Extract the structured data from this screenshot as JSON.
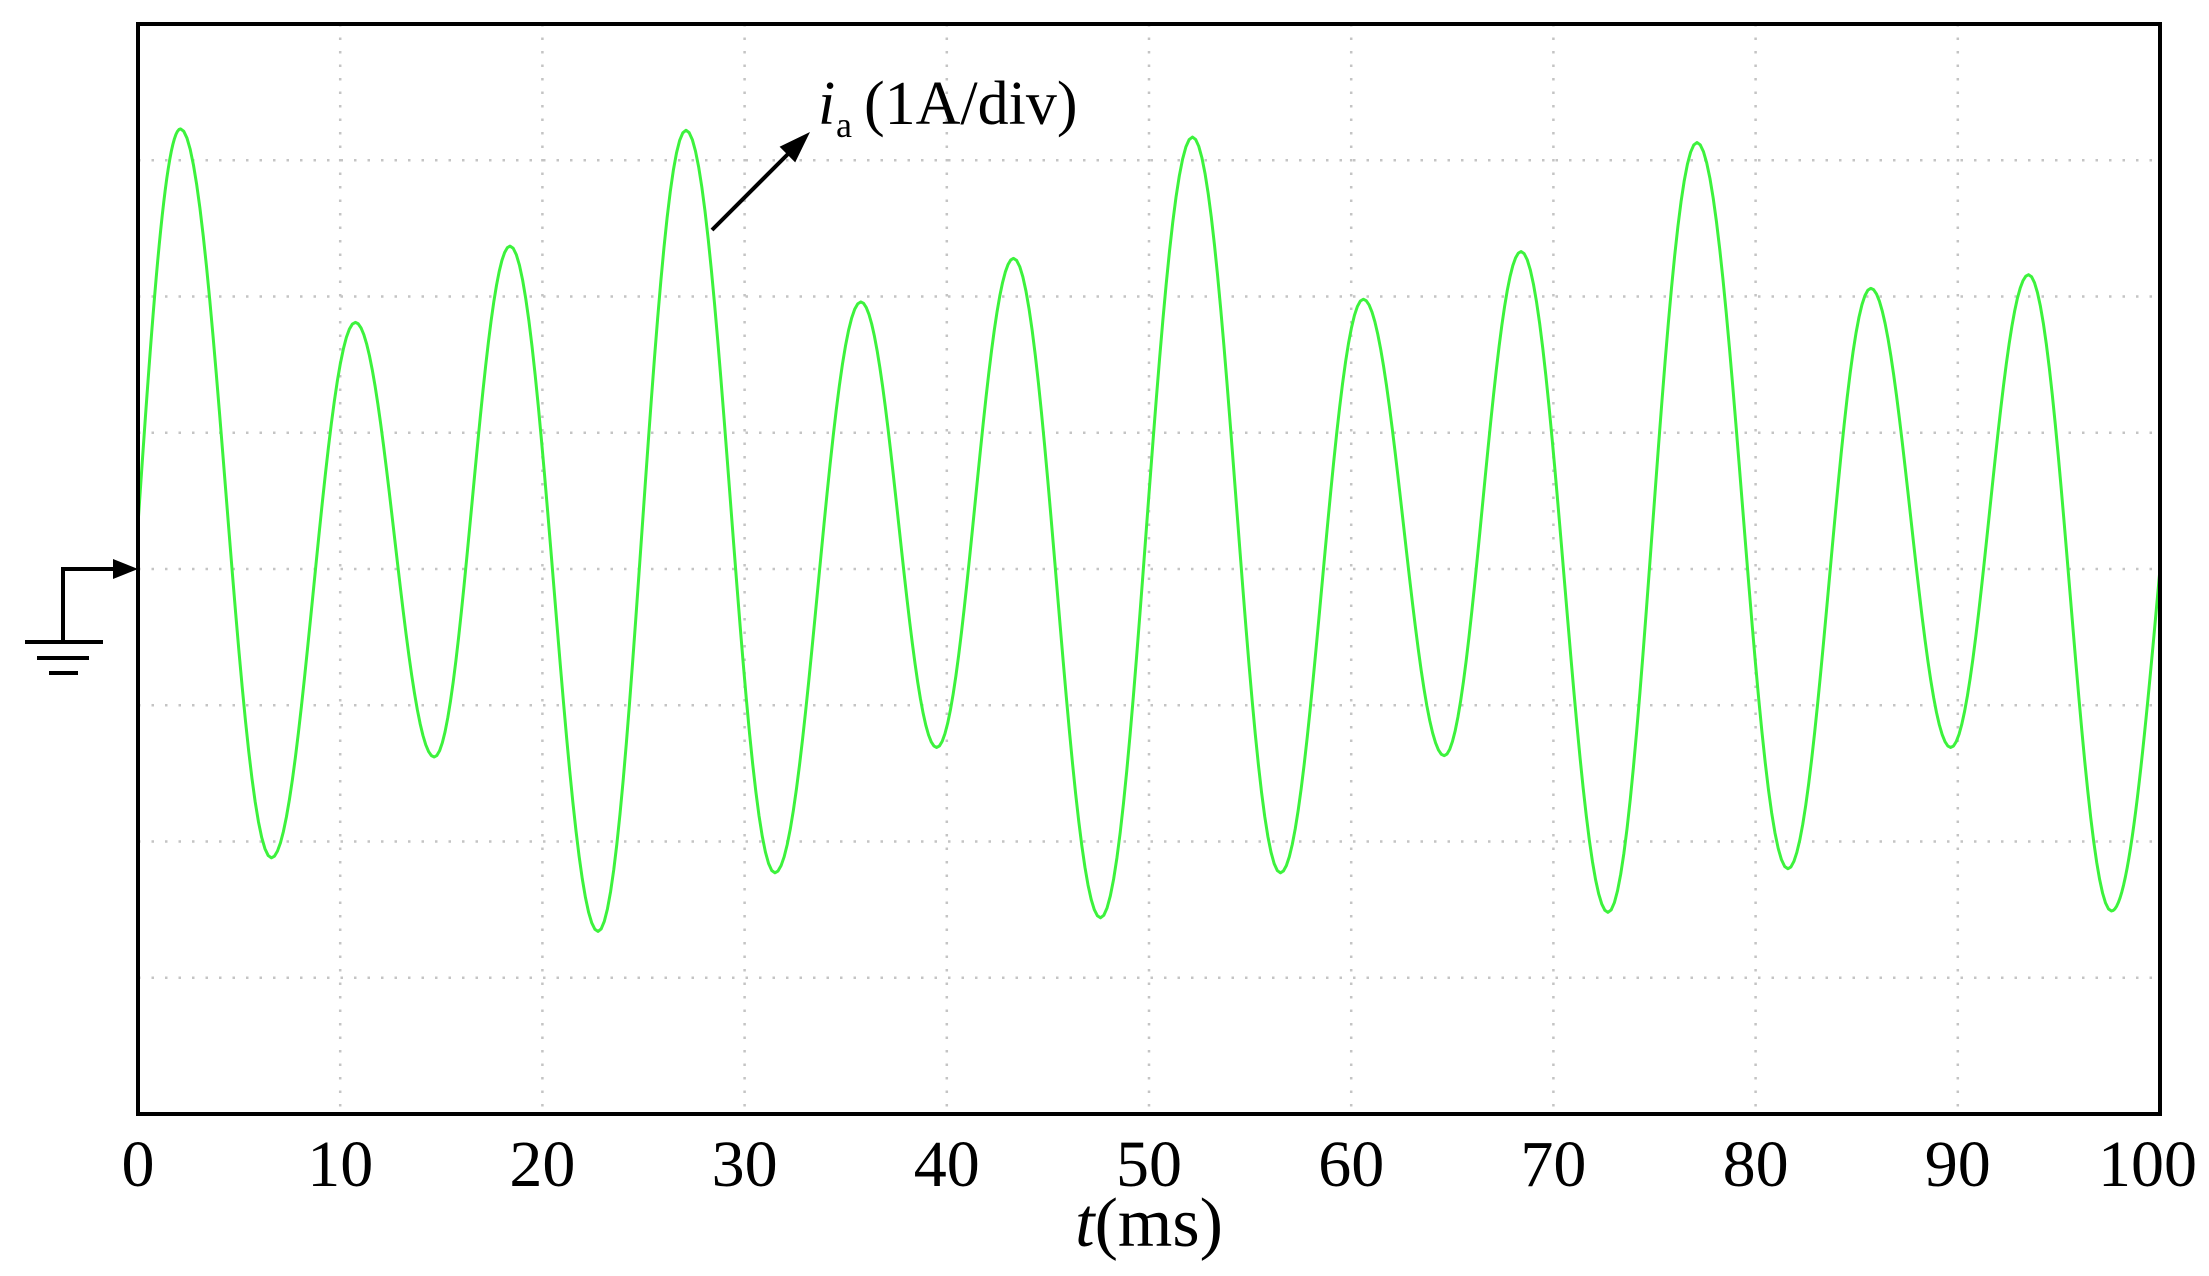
{
  "chart_data": {
    "type": "line",
    "xlabel": {
      "symbol": "t",
      "unit": "(ms)"
    },
    "xticks": [
      0,
      10,
      20,
      30,
      40,
      50,
      60,
      70,
      80,
      90,
      100
    ],
    "xlim": [
      0,
      100
    ],
    "ylim": [
      -4,
      4
    ],
    "xgrid_step": 10,
    "ygrid_step": 1,
    "grid": true,
    "grid_color": "#c4c4c4",
    "frame_color": "#000000",
    "ground_marker": {
      "level": 0,
      "icon": "ground-icon"
    },
    "series": [
      {
        "label": {
          "symbol": "i",
          "subscript": "a",
          "scale": "(1A/div)"
        },
        "color": "#3df23d",
        "points": [
          [
            0,
            0.33
          ],
          [
            2.1,
            3.23
          ],
          [
            6.6,
            -2.12
          ],
          [
            10.75,
            1.81
          ],
          [
            14.65,
            -1.38
          ],
          [
            18.4,
            2.37
          ],
          [
            22.75,
            -2.66
          ],
          [
            27.1,
            3.22
          ],
          [
            31.5,
            -2.23
          ],
          [
            35.75,
            1.96
          ],
          [
            39.5,
            -1.31
          ],
          [
            43.3,
            2.28
          ],
          [
            47.6,
            -2.56
          ],
          [
            52.15,
            3.17
          ],
          [
            56.5,
            -2.23
          ],
          [
            60.6,
            1.98
          ],
          [
            64.6,
            -1.37
          ],
          [
            68.4,
            2.33
          ],
          [
            72.7,
            -2.52
          ],
          [
            77.1,
            3.13
          ],
          [
            81.6,
            -2.2
          ],
          [
            85.7,
            2.06
          ],
          [
            89.65,
            -1.31
          ],
          [
            93.5,
            2.16
          ],
          [
            97.6,
            -2.51
          ],
          [
            100,
            0.0
          ]
        ]
      }
    ]
  }
}
